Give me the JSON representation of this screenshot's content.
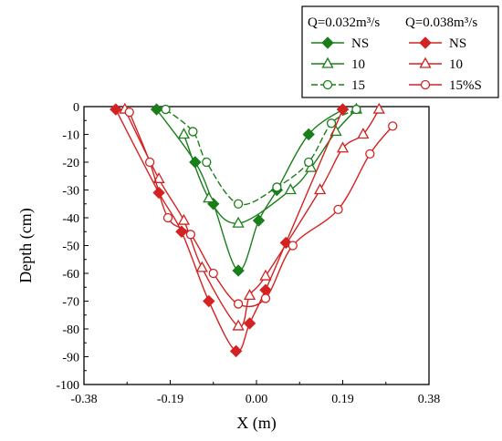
{
  "chart_data": {
    "type": "line",
    "xlabel": "X (m)",
    "ylabel": "Depth (cm)",
    "xlim": [
      -0.38,
      0.38
    ],
    "ylim": [
      -100,
      0
    ],
    "xticks": [
      "-0.38",
      "-0.19",
      "0.00",
      "0.19",
      "0.38"
    ],
    "xtick_values": [
      -0.38,
      -0.19,
      0.0,
      0.19,
      0.38
    ],
    "yticks": [
      "0",
      "-10",
      "-20",
      "-30",
      "-40",
      "-50",
      "-60",
      "-70",
      "-80",
      "-90",
      "-100"
    ],
    "ytick_values": [
      0,
      -10,
      -20,
      -30,
      -40,
      -50,
      -60,
      -70,
      -80,
      -90,
      -100
    ],
    "legend": {
      "placement": "top-right",
      "headers": [
        "Q=0.032m³/s",
        "Q=0.038m³/s"
      ]
    },
    "series": [
      {
        "name": "NS",
        "group": "Q=0.032m³/s",
        "color": "#1a7f1a",
        "marker": "diamond-filled",
        "dash": "solid",
        "x": [
          -0.22,
          -0.135,
          -0.095,
          -0.04,
          0.005,
          0.045,
          0.115,
          0.19
        ],
        "y": [
          -1,
          -20,
          -35,
          -59,
          -41,
          -30,
          -10,
          -1
        ]
      },
      {
        "name": "10",
        "group": "Q=0.032m³/s",
        "color": "#1a7f1a",
        "marker": "triangle-open",
        "dash": "solid",
        "x": [
          -0.16,
          -0.105,
          -0.04,
          0.075,
          0.12,
          0.175,
          0.22
        ],
        "y": [
          -10,
          -33,
          -42,
          -30,
          -22,
          -9,
          -1
        ]
      },
      {
        "name": "15",
        "group": "Q=0.032m³/s",
        "color": "#1a7f1a",
        "marker": "circle-open",
        "dash": "dash",
        "x": [
          -0.2,
          -0.14,
          -0.11,
          -0.04,
          0.045,
          0.115,
          0.165,
          0.22
        ],
        "y": [
          -1,
          -9,
          -20,
          -35,
          -29,
          -20,
          -6,
          -1
        ]
      },
      {
        "name": "NS",
        "group": "Q=0.038m³/s",
        "color": "#d42222",
        "marker": "diamond-filled",
        "dash": "solid",
        "x": [
          -0.31,
          -0.215,
          -0.165,
          -0.105,
          -0.045,
          -0.015,
          0.02,
          0.065,
          0.19
        ],
        "y": [
          -1,
          -31,
          -45,
          -70,
          -88,
          -78,
          -66,
          -49,
          -1
        ]
      },
      {
        "name": "10",
        "group": "Q=0.038m³/s",
        "color": "#d42222",
        "marker": "triangle-open",
        "dash": "solid",
        "x": [
          -0.29,
          -0.215,
          -0.16,
          -0.12,
          -0.04,
          -0.015,
          0.02,
          0.14,
          0.19,
          0.235,
          0.27
        ],
        "y": [
          -1,
          -26,
          -41,
          -58,
          -79,
          -68,
          -61,
          -30,
          -15,
          -10,
          -1
        ]
      },
      {
        "name": "15%S",
        "group": "Q=0.038m³/s",
        "color": "#d42222",
        "marker": "circle-open",
        "dash": "solid",
        "x": [
          -0.28,
          -0.235,
          -0.195,
          -0.145,
          -0.095,
          -0.04,
          0.02,
          0.08,
          0.18,
          0.25,
          0.3
        ],
        "y": [
          -2,
          -20,
          -40,
          -46,
          -60,
          -71,
          -69,
          -50,
          -37,
          -17,
          -7
        ]
      }
    ]
  }
}
